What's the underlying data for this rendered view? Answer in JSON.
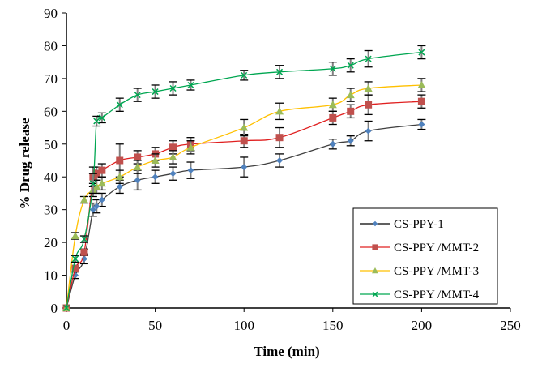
{
  "chart_data": {
    "type": "line",
    "title": "",
    "xlabel": "Time (min)",
    "ylabel": "% Drug release",
    "xlim": [
      0,
      250
    ],
    "ylim": [
      0,
      90
    ],
    "xticks": [
      0,
      50,
      100,
      150,
      200,
      250
    ],
    "yticks": [
      0,
      10,
      20,
      30,
      40,
      50,
      60,
      70,
      80,
      90
    ],
    "grid": false,
    "legend_position": "bottom-right",
    "error_bars": true,
    "series": [
      {
        "name": "CS-PPY-1",
        "line_color": "#404040",
        "marker_color": "#4f81bd",
        "marker": "diamond",
        "x": [
          0,
          5,
          10,
          15,
          17,
          20,
          30,
          40,
          50,
          60,
          70,
          100,
          120,
          150,
          160,
          170,
          200
        ],
        "y": [
          0,
          10,
          15,
          30,
          31,
          33,
          37,
          39,
          40,
          41,
          42,
          43,
          45,
          50,
          51,
          54,
          56
        ],
        "err": [
          0,
          1,
          1.5,
          2,
          2,
          2,
          2,
          3,
          2,
          2,
          2.5,
          3,
          2,
          1.5,
          1.5,
          3,
          1.5
        ]
      },
      {
        "name": "CS-PPY /MMT-2",
        "line_color": "#e02020",
        "marker_color": "#c0504d",
        "marker": "square",
        "x": [
          0,
          5,
          10,
          15,
          17,
          20,
          30,
          40,
          50,
          60,
          70,
          100,
          120,
          150,
          160,
          170,
          200
        ],
        "y": [
          0,
          12,
          17,
          40,
          41,
          42,
          45,
          46,
          47,
          49,
          50,
          51,
          52,
          58,
          60,
          62,
          63
        ],
        "err": [
          0,
          1,
          1,
          3,
          2,
          2,
          5,
          2,
          2,
          2,
          2,
          2,
          3,
          2,
          2,
          3,
          2
        ]
      },
      {
        "name": "CS-PPY /MMT-3",
        "line_color": "#ffc000",
        "marker_color": "#9bbb59",
        "marker": "triangle",
        "x": [
          0,
          5,
          10,
          15,
          17,
          20,
          30,
          40,
          50,
          60,
          70,
          100,
          120,
          150,
          160,
          170,
          200
        ],
        "y": [
          0,
          22,
          33,
          36,
          37,
          38,
          40,
          43,
          45,
          46,
          49,
          55,
          60,
          62,
          65,
          67,
          68
        ],
        "err": [
          0,
          1,
          1,
          2,
          2,
          2,
          2,
          2,
          2,
          2,
          2,
          2.5,
          2.5,
          2,
          2,
          2,
          2
        ]
      },
      {
        "name": "CS-PPY /MMT-4",
        "line_color": "#00a651",
        "marker_color": "#00a651",
        "marker": "x",
        "x": [
          0,
          5,
          10,
          15,
          17,
          20,
          30,
          40,
          50,
          60,
          70,
          100,
          120,
          150,
          160,
          170,
          200
        ],
        "y": [
          0,
          15,
          21,
          38,
          57,
          58,
          62,
          65,
          66,
          67,
          68,
          71,
          72,
          73,
          74,
          76,
          78
        ],
        "err": [
          0,
          1,
          1,
          3,
          1.5,
          1.5,
          2,
          2,
          2,
          2,
          1.5,
          1.5,
          2,
          2,
          2,
          2.5,
          2
        ]
      }
    ]
  }
}
